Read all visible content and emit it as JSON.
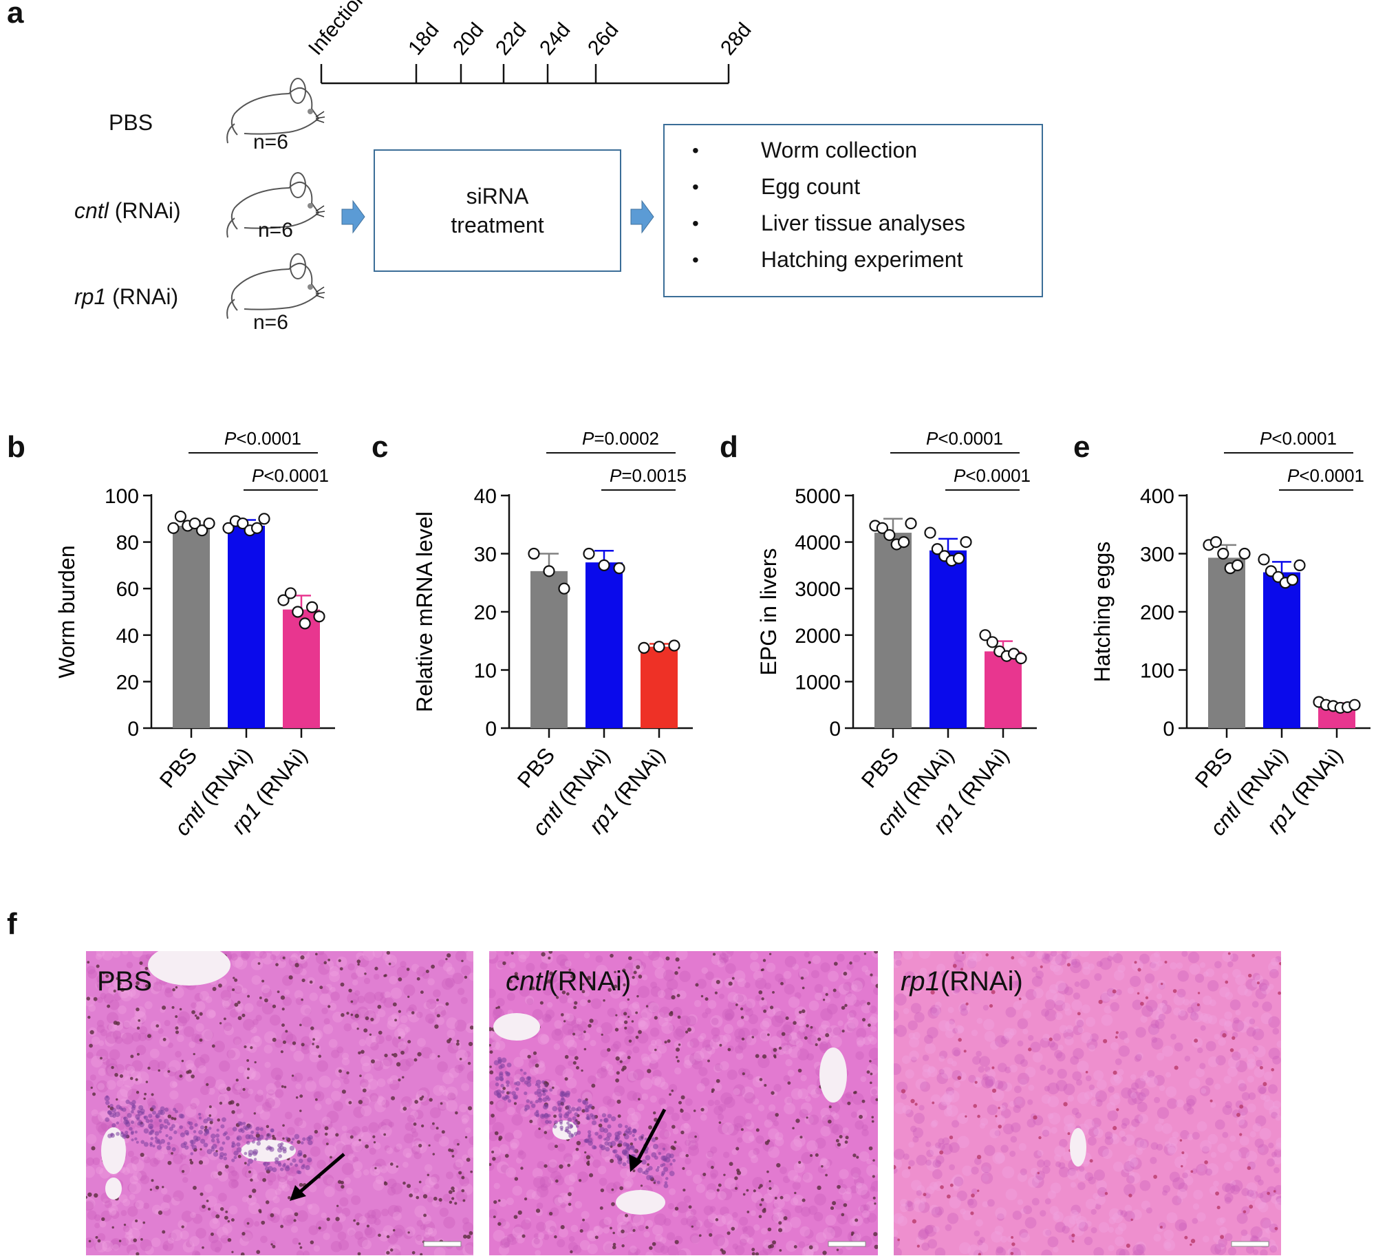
{
  "panel_a": {
    "letter": "a",
    "timeline": [
      "Infection",
      "18d",
      "20d",
      "22d",
      "24d",
      "26d",
      "28d"
    ],
    "groups": [
      {
        "name": "PBS",
        "n": "n=6"
      },
      {
        "name_italic": "cntl",
        "name_suffix": " (RNAi)",
        "n": "n=6"
      },
      {
        "name_italic": "rp1",
        "name_suffix": " (RNAi)",
        "n": "n=6"
      }
    ],
    "treatment": [
      "siRNA",
      "treatment"
    ],
    "outcomes": [
      "Worm collection",
      "Egg count",
      "Liver tissue analyses",
      "Hatching experiment"
    ],
    "bullet": "•"
  },
  "chart_data": [
    {
      "letter": "b",
      "type": "bar",
      "ylabel": "Worm burden",
      "ylim": [
        0,
        100
      ],
      "yticks": [
        0,
        20,
        40,
        60,
        80,
        100
      ],
      "categories": [
        {
          "italic": "",
          "rest": "PBS"
        },
        {
          "italic": "cntl",
          "rest": " (RNAi)"
        },
        {
          "italic": "rp1",
          "rest": " (RNAi)"
        }
      ],
      "values": [
        87,
        87,
        51
      ],
      "errors": [
        2,
        2.5,
        6
      ],
      "colors": [
        "#808080",
        "#0a0aeb",
        "#e8368f"
      ],
      "points": [
        [
          86,
          91,
          87,
          88,
          85,
          88
        ],
        [
          86,
          89,
          88,
          85,
          86,
          90
        ],
        [
          55,
          58,
          50,
          45,
          52,
          48
        ]
      ],
      "comparisons": [
        {
          "from": 0,
          "to": 2,
          "label_italic": "P",
          "label_rest": "<0.0001"
        },
        {
          "from": 1,
          "to": 2,
          "label_italic": "P",
          "label_rest": "<0.0001"
        }
      ]
    },
    {
      "letter": "c",
      "type": "bar",
      "ylabel": "Relative mRNA level",
      "ylim": [
        0,
        40
      ],
      "yticks": [
        0,
        10,
        20,
        30,
        40
      ],
      "categories": [
        {
          "italic": "",
          "rest": "PBS"
        },
        {
          "italic": "cntl",
          "rest": " (RNAi)"
        },
        {
          "italic": "rp1",
          "rest": " (RNAi)"
        }
      ],
      "values": [
        27,
        28.5,
        14
      ],
      "errors": [
        3,
        2,
        0.5
      ],
      "colors": [
        "#808080",
        "#0a0aeb",
        "#ee3126"
      ],
      "points": [
        [
          30,
          27,
          24
        ],
        [
          30,
          28,
          27.5
        ],
        [
          13.8,
          14,
          14.2
        ]
      ],
      "comparisons": [
        {
          "from": 0,
          "to": 2,
          "label_italic": "P",
          "label_rest": "=0.0002"
        },
        {
          "from": 1,
          "to": 2,
          "label_italic": "P",
          "label_rest": "=0.0015"
        }
      ]
    },
    {
      "letter": "d",
      "type": "bar",
      "ylabel": "EPG in livers",
      "ylim": [
        0,
        5000
      ],
      "yticks": [
        0,
        1000,
        2000,
        3000,
        4000,
        5000
      ],
      "categories": [
        {
          "italic": "",
          "rest": "PBS"
        },
        {
          "italic": "cntl",
          "rest": " (RNAi)"
        },
        {
          "italic": "rp1",
          "rest": " (RNAi)"
        }
      ],
      "values": [
        4200,
        3820,
        1650
      ],
      "errors": [
        300,
        250,
        220
      ],
      "colors": [
        "#808080",
        "#0a0aeb",
        "#e8368f"
      ],
      "points": [
        [
          4350,
          4300,
          4150,
          3950,
          4000,
          4400
        ],
        [
          4200,
          3850,
          3700,
          3600,
          3650,
          4000
        ],
        [
          2000,
          1850,
          1650,
          1550,
          1600,
          1500
        ]
      ],
      "comparisons": [
        {
          "from": 0,
          "to": 2,
          "label_italic": "P",
          "label_rest": "<0.0001"
        },
        {
          "from": 1,
          "to": 2,
          "label_italic": "P",
          "label_rest": "<0.0001"
        }
      ]
    },
    {
      "letter": "e",
      "type": "bar",
      "ylabel": "Hatching eggs",
      "ylim": [
        0,
        400
      ],
      "yticks": [
        0,
        100,
        200,
        300,
        400
      ],
      "categories": [
        {
          "italic": "",
          "rest": "PBS"
        },
        {
          "italic": "cntl",
          "rest": " (RNAi)"
        },
        {
          "italic": "rp1",
          "rest": " (RNAi)"
        }
      ],
      "values": [
        293,
        268,
        38
      ],
      "errors": [
        22,
        18,
        5
      ],
      "colors": [
        "#808080",
        "#0a0aeb",
        "#e8368f"
      ],
      "points": [
        [
          315,
          320,
          300,
          275,
          280,
          300
        ],
        [
          290,
          270,
          260,
          250,
          255,
          280
        ],
        [
          45,
          40,
          38,
          35,
          36,
          40
        ]
      ],
      "comparisons": [
        {
          "from": 0,
          "to": 2,
          "label_italic": "P",
          "label_rest": "<0.0001"
        },
        {
          "from": 1,
          "to": 2,
          "label_italic": "P",
          "label_rest": "<0.0001"
        }
      ]
    }
  ],
  "panel_f": {
    "letter": "f",
    "images": [
      {
        "italic": "",
        "rest": "PBS",
        "tone": "#e07fd2"
      },
      {
        "italic": "cntl",
        "rest": "(RNAi)",
        "tone": "#e27ad0"
      },
      {
        "italic": "rp1",
        "rest": "(RNAi)",
        "tone": "#ee8fce"
      }
    ]
  }
}
